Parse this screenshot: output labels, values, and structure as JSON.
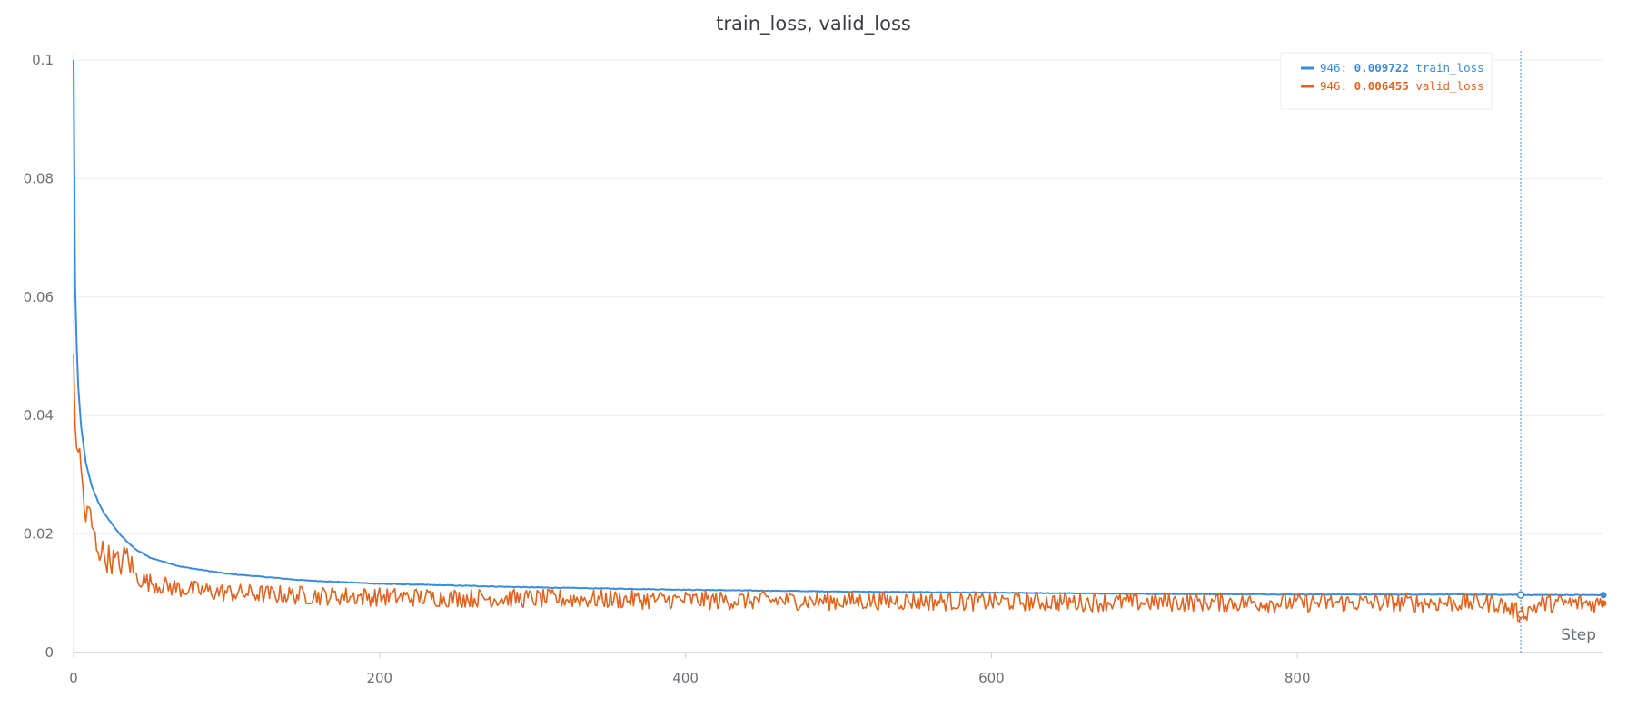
{
  "chart_data": {
    "type": "line",
    "title": "train_loss, valid_loss",
    "xlabel": "Step",
    "ylabel": "",
    "xlim": [
      0,
      1000
    ],
    "ylim": [
      0,
      0.1
    ],
    "x_ticks": [
      0,
      200,
      400,
      600,
      800
    ],
    "y_ticks": [
      0,
      0.02,
      0.04,
      0.06,
      0.08,
      0.1
    ],
    "y_tick_labels": [
      "0",
      "0.02",
      "0.04",
      "0.06",
      "0.08",
      "0.1"
    ],
    "grid": true,
    "legend_position": "top-right",
    "hover_step": 946,
    "series": [
      {
        "name": "train_loss",
        "color": "#3b8bdb",
        "hover_value": "0.009722",
        "x": [
          0,
          1,
          2,
          3,
          5,
          8,
          12,
          16,
          20,
          30,
          40,
          50,
          70,
          100,
          150,
          200,
          300,
          400,
          500,
          600,
          700,
          800,
          900,
          946,
          1000
        ],
        "y": [
          0.1,
          0.062,
          0.052,
          0.045,
          0.038,
          0.032,
          0.028,
          0.0255,
          0.0235,
          0.02,
          0.0175,
          0.016,
          0.0145,
          0.0133,
          0.0122,
          0.0116,
          0.011,
          0.0106,
          0.0103,
          0.0101,
          0.0099,
          0.0098,
          0.0098,
          0.009722,
          0.0097
        ]
      },
      {
        "name": "valid_loss",
        "color": "#e0641e",
        "hover_value": "0.006455",
        "x": [
          0,
          1,
          2,
          4,
          6,
          8,
          10,
          14,
          18,
          22,
          26,
          30,
          35,
          40,
          45,
          50,
          60,
          70,
          80,
          90,
          100,
          120,
          140,
          160,
          180,
          200,
          230,
          260,
          300,
          340,
          380,
          420,
          460,
          500,
          540,
          580,
          620,
          660,
          700,
          740,
          780,
          820,
          860,
          900,
          930,
          946,
          960,
          980,
          1000
        ],
        "y": [
          0.048,
          0.038,
          0.036,
          0.033,
          0.028,
          0.022,
          0.024,
          0.019,
          0.017,
          0.016,
          0.0155,
          0.0148,
          0.0165,
          0.013,
          0.0122,
          0.0118,
          0.0112,
          0.0108,
          0.0105,
          0.0103,
          0.0101,
          0.0099,
          0.0097,
          0.0096,
          0.0095,
          0.0094,
          0.0093,
          0.0092,
          0.0091,
          0.009,
          0.0089,
          0.0088,
          0.0088,
          0.0087,
          0.0087,
          0.0086,
          0.0086,
          0.0085,
          0.0085,
          0.0085,
          0.0084,
          0.0084,
          0.0084,
          0.0084,
          0.0084,
          0.006455,
          0.0083,
          0.0083,
          0.0083
        ]
      }
    ]
  }
}
